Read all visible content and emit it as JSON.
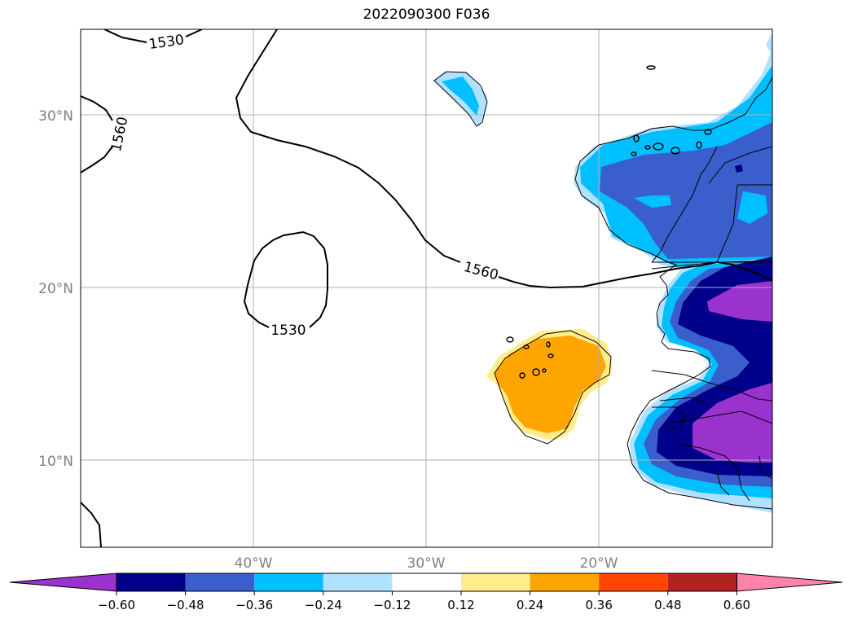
{
  "title": "2022090300 F036",
  "map": {
    "lat_labels": [
      "30°N",
      "20°N",
      "10°N"
    ],
    "lon_labels": [
      "40°W",
      "30°W",
      "20°W"
    ],
    "grid": true,
    "contour_labels": [
      "1530",
      "1560",
      "1560",
      "1530"
    ]
  },
  "colorbar": {
    "labels": [
      "−0.60",
      "−0.48",
      "−0.36",
      "−0.24",
      "−0.12",
      "0.12",
      "0.24",
      "0.36",
      "0.48",
      "0.60"
    ],
    "colors": [
      "#9a32cd",
      "#00008b",
      "#3a5fcd",
      "#00bfff",
      "#b0e2ff",
      "#ffffff",
      "#ffec8b",
      "#ffa500",
      "#ff4500",
      "#b22222",
      "#ff82ab"
    ]
  }
}
